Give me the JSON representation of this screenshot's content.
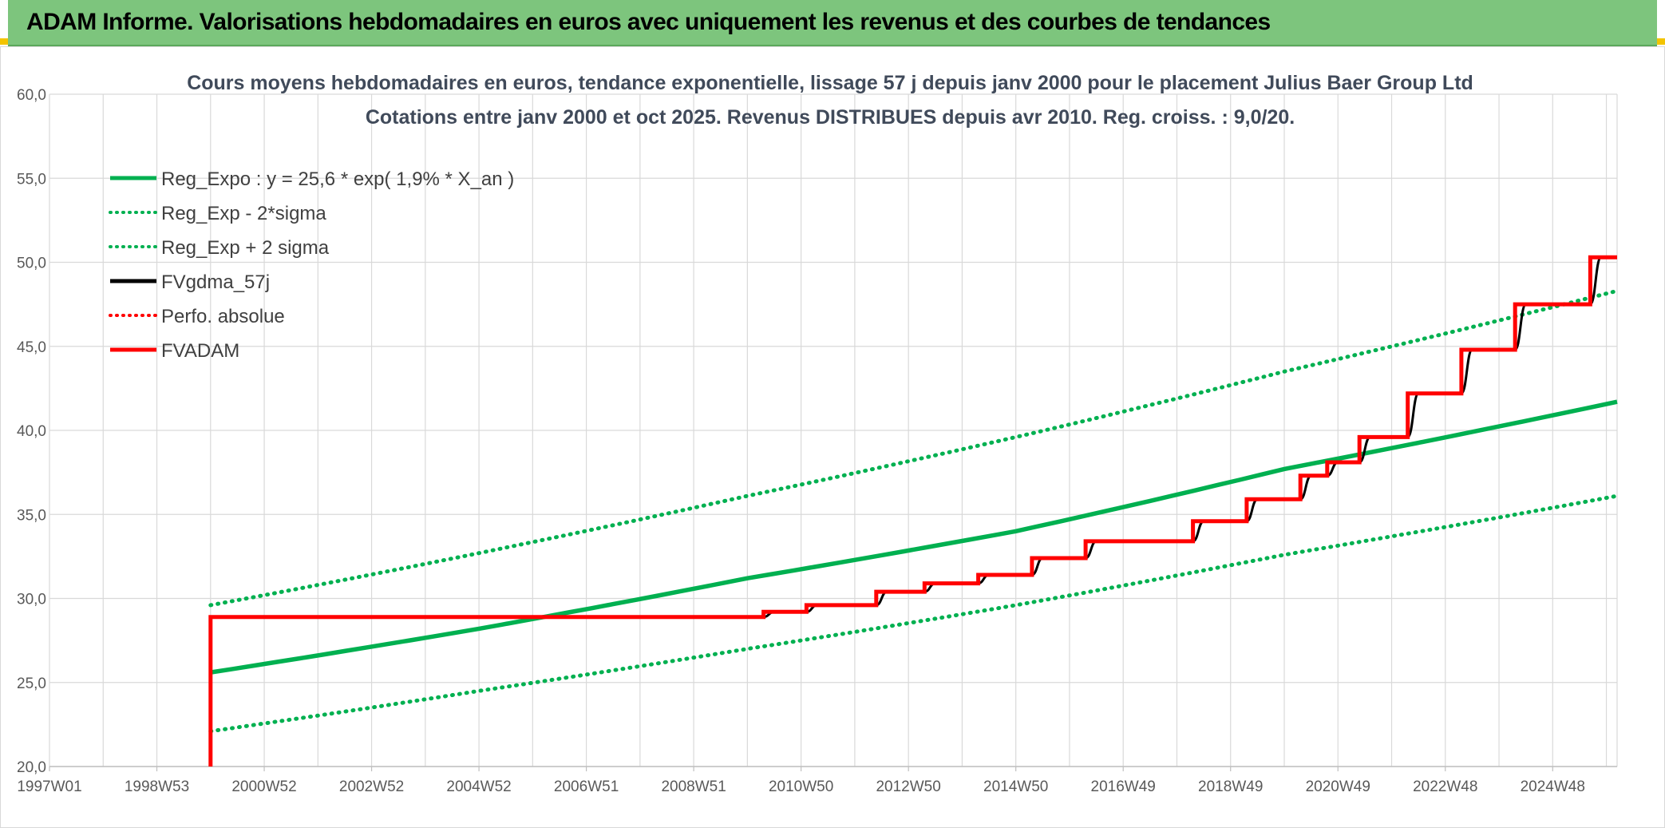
{
  "header": {
    "title": "ADAM Informe. Valorisations hebdomadaires en euros avec uniquement les revenus et des courbes de tendances"
  },
  "colors": {
    "banner": "#7dc57d",
    "reg_green": "#00b050",
    "fv_black": "#000000",
    "adam_red": "#ff0000",
    "grid": "#d9d9d9"
  },
  "chart_data": {
    "type": "line",
    "title_line1": "Cours moyens hebdomadaires en euros, tendance exponentielle, lissage 57 j depuis janv 2000 pour le placement Julius Baer Group Ltd",
    "title_line2": "Cotations entre janv 2000 et oct 2025. Revenus DISTRIBUES depuis avr 2010. Reg. croiss. : 9,0/20.",
    "y_ticks": [
      "20,0",
      "25,0",
      "30,0",
      "35,0",
      "40,0",
      "45,0",
      "50,0",
      "55,0",
      "60,0"
    ],
    "ylim": [
      20,
      60
    ],
    "x_ticks": [
      "1997W01",
      "1998W53",
      "2000W52",
      "2002W52",
      "2004W52",
      "2006W51",
      "2008W51",
      "2010W50",
      "2012W50",
      "2014W50",
      "2016W49",
      "2018W49",
      "2020W49",
      "2022W48",
      "2024W48"
    ],
    "xlim": [
      1997.0,
      2026.2
    ],
    "grid": true,
    "legend_position": "top-left",
    "legend": [
      {
        "label": "Reg_Expo : y = 25,6 * exp( 1,9% *  X_an )",
        "color": "#00b050",
        "style": "solid"
      },
      {
        "label": "Reg_Exp - 2*sigma",
        "color": "#00b050",
        "style": "dotted"
      },
      {
        "label": "Reg_Exp + 2 sigma",
        "color": "#00b050",
        "style": "dotted"
      },
      {
        "label": "FVgdma_57j",
        "color": "#000000",
        "style": "solid"
      },
      {
        "label": "Perfo. absolue",
        "color": "#ff0000",
        "style": "dotted"
      },
      {
        "label": "FVADAM",
        "color": "#ff0000",
        "style": "solid"
      }
    ],
    "series": [
      {
        "name": "Reg_Expo : y = 25,6 * exp( 1,9% *  X_an )",
        "x": [
          2000.0,
          2005.0,
          2010.0,
          2015.0,
          2020.0,
          2026.2
        ],
        "y": [
          25.6,
          28.2,
          31.2,
          34.0,
          37.7,
          41.7
        ]
      },
      {
        "name": "Reg_Exp - 2*sigma",
        "x": [
          2000.0,
          2005.0,
          2010.0,
          2015.0,
          2020.0,
          2026.2
        ],
        "y": [
          22.1,
          24.5,
          27.0,
          29.6,
          32.6,
          36.1
        ]
      },
      {
        "name": "Reg_Exp + 2 sigma",
        "x": [
          2000.0,
          2005.0,
          2010.0,
          2015.0,
          2020.0,
          2026.2
        ],
        "y": [
          29.6,
          32.7,
          36.1,
          39.6,
          43.5,
          48.3
        ]
      },
      {
        "name": "FVADAM",
        "x": [
          2000.0,
          2000.0,
          2010.3,
          2010.3,
          2011.1,
          2011.1,
          2012.4,
          2012.4,
          2013.3,
          2013.3,
          2014.3,
          2014.3,
          2015.3,
          2015.3,
          2016.3,
          2016.3,
          2018.3,
          2018.3,
          2019.3,
          2019.3,
          2020.3,
          2020.3,
          2020.8,
          2020.8,
          2021.4,
          2021.4,
          2022.3,
          2022.3,
          2023.3,
          2023.3,
          2024.3,
          2024.3,
          2025.7,
          2025.7,
          2026.2
        ],
        "y": [
          20.0,
          28.9,
          28.9,
          29.2,
          29.2,
          29.6,
          29.6,
          30.4,
          30.4,
          30.9,
          30.9,
          31.4,
          31.4,
          32.4,
          32.4,
          33.4,
          33.4,
          34.6,
          34.6,
          35.9,
          35.9,
          37.3,
          37.3,
          38.1,
          38.1,
          39.6,
          39.6,
          42.2,
          42.2,
          44.8,
          44.8,
          47.5,
          47.5,
          50.3,
          50.3
        ]
      },
      {
        "name": "FVgdma_57j",
        "x": [
          2010.3,
          2010.5,
          2011.1,
          2011.3,
          2012.4,
          2012.6,
          2013.3,
          2013.5,
          2014.3,
          2014.5,
          2015.3,
          2015.5,
          2016.3,
          2016.5,
          2018.3,
          2018.5,
          2019.3,
          2019.5,
          2020.3,
          2020.5,
          2020.8,
          2021.0,
          2021.4,
          2021.6,
          2022.3,
          2022.5,
          2023.3,
          2023.5,
          2024.3,
          2024.5,
          2025.7,
          2025.9,
          2026.2
        ],
        "y": [
          28.9,
          29.2,
          29.2,
          29.6,
          29.6,
          30.4,
          30.4,
          30.9,
          30.9,
          31.4,
          31.4,
          32.4,
          32.4,
          33.4,
          33.4,
          34.6,
          34.6,
          35.9,
          35.9,
          37.3,
          37.3,
          38.1,
          38.1,
          39.6,
          39.6,
          42.2,
          42.2,
          44.8,
          44.8,
          47.5,
          47.5,
          50.3,
          50.3
        ]
      }
    ]
  }
}
